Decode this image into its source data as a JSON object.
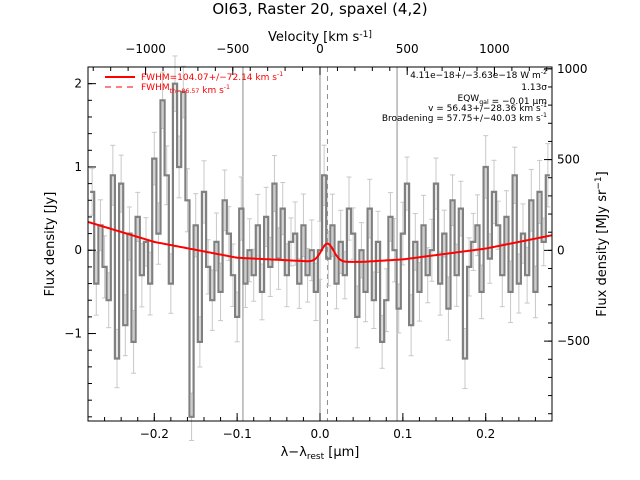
{
  "chart_data": {
    "type": "line",
    "title": "OI63, Raster 20, spaxel (4,2)",
    "xlabel": "λ−λ_rest [μm]",
    "ylabel_left": "Flux density [Jy]",
    "ylabel_right": "Flux density [MJy sr^-1]",
    "top_axis_label": "Velocity [km s^-1]",
    "xlim": [
      -0.28,
      0.28
    ],
    "ylim": [
      -2.05,
      2.2
    ],
    "right_ylim": [
      -940,
      1010
    ],
    "top_xlim": [
      -1330,
      1330
    ],
    "x_ticks": [
      -0.2,
      -0.1,
      0.0,
      0.1,
      0.2
    ],
    "x_tick_labels": [
      "−0.2",
      "−0.1",
      "0.0",
      "0.1",
      "0.2"
    ],
    "y_ticks": [
      -1,
      0,
      1,
      2
    ],
    "y_tick_labels": [
      "−1",
      "0",
      "1",
      "2"
    ],
    "right_ticks": [
      -500,
      0,
      500,
      1000
    ],
    "right_tick_labels": [
      "−500",
      "0",
      "500",
      "1000"
    ],
    "top_ticks": [
      -1000,
      -500,
      0,
      500,
      1000
    ],
    "top_tick_labels": [
      "−1000",
      "−500",
      "0",
      "500",
      "1000"
    ],
    "vertical_lines": [
      -0.093,
      0.0,
      0.093
    ],
    "dashed_line": 0.009,
    "legend": {
      "position": "top-left",
      "entries": [
        {
          "label": "FWHM=104.07+/−72.14 km s^-1",
          "style": "solid"
        },
        {
          "label": "FWHM_th=86.57 km s^-1",
          "style": "dashed"
        }
      ]
    },
    "annotations": [
      "4.11e−18+/−3.63e−18 W m^-2",
      "1.13σ",
      "EQW_gal = −0.01 μm",
      "v = 56.43+/−28.36 km s^-1",
      "Broadening = 57.75+/−40.03 km s^-1"
    ],
    "line_center": 0.009,
    "line_sigma": 0.0075,
    "line_peak": 0.22,
    "series": [
      {
        "name": "spectrum",
        "color": "#808080",
        "x": [
          -0.275,
          -0.27,
          -0.265,
          -0.26,
          -0.255,
          -0.25,
          -0.245,
          -0.24,
          -0.235,
          -0.23,
          -0.225,
          -0.22,
          -0.215,
          -0.21,
          -0.205,
          -0.2,
          -0.195,
          -0.19,
          -0.185,
          -0.18,
          -0.175,
          -0.17,
          -0.165,
          -0.16,
          -0.155,
          -0.15,
          -0.145,
          -0.14,
          -0.135,
          -0.13,
          -0.125,
          -0.12,
          -0.115,
          -0.11,
          -0.105,
          -0.1,
          -0.095,
          -0.09,
          -0.085,
          -0.08,
          -0.075,
          -0.07,
          -0.065,
          -0.06,
          -0.055,
          -0.05,
          -0.045,
          -0.04,
          -0.035,
          -0.03,
          -0.025,
          -0.02,
          -0.015,
          -0.01,
          -0.005,
          0.0,
          0.005,
          0.01,
          0.015,
          0.02,
          0.025,
          0.03,
          0.035,
          0.04,
          0.045,
          0.05,
          0.055,
          0.06,
          0.065,
          0.07,
          0.075,
          0.08,
          0.085,
          0.09,
          0.095,
          0.1,
          0.105,
          0.11,
          0.115,
          0.12,
          0.125,
          0.13,
          0.135,
          0.14,
          0.145,
          0.15,
          0.155,
          0.16,
          0.165,
          0.17,
          0.175,
          0.18,
          0.185,
          0.19,
          0.195,
          0.2,
          0.205,
          0.21,
          0.215,
          0.22,
          0.225,
          0.23,
          0.235,
          0.24,
          0.245,
          0.25,
          0.255,
          0.26,
          0.265,
          0.27,
          0.275
        ],
        "y": [
          0.7,
          -0.4,
          0.3,
          -0.2,
          -0.6,
          0.9,
          -1.3,
          0.8,
          -0.9,
          0.2,
          -1.1,
          0.4,
          -0.3,
          0.1,
          -0.4,
          1.1,
          0.2,
          1.8,
          0.9,
          -0.4,
          2.0,
          1.0,
          1.9,
          0.6,
          -2.0,
          0.3,
          -1.1,
          0.7,
          -0.2,
          -0.6,
          0.1,
          -0.5,
          0.6,
          0.2,
          -0.3,
          -0.8,
          0.5,
          -0.4,
          0.0,
          -0.3,
          0.3,
          -0.5,
          0.4,
          -0.2,
          0.8,
          -0.1,
          0.5,
          -0.3,
          0.1,
          0.2,
          -0.4,
          0.3,
          -0.3,
          0.0,
          -0.5,
          0.0,
          0.9,
          -0.1,
          0.3,
          -0.4,
          0.1,
          -0.3,
          0.5,
          0.2,
          -0.8,
          0.0,
          -0.5,
          0.5,
          -0.6,
          0.1,
          -1.1,
          -0.6,
          0.4,
          0.0,
          -0.7,
          0.2,
          0.8,
          -0.9,
          0.1,
          -0.5,
          0.3,
          -0.3,
          0.0,
          0.8,
          -0.4,
          0.2,
          -0.7,
          0.6,
          -0.3,
          0.5,
          -1.3,
          -0.2,
          0.1,
          0.3,
          -0.5,
          1.0,
          -0.1,
          0.7,
          0.3,
          -0.3,
          0.4,
          -0.5,
          0.9,
          -0.4,
          0.2,
          -0.3,
          0.6,
          -0.5,
          0.7,
          0.1,
          0.9
        ]
      },
      {
        "name": "fit",
        "color": "#ff0000",
        "baseline_x": [
          -0.28,
          -0.2,
          -0.1,
          0.0,
          0.05,
          0.1,
          0.2,
          0.28
        ],
        "baseline_y": [
          0.34,
          0.1,
          -0.09,
          -0.14,
          -0.14,
          -0.11,
          0.02,
          0.18
        ]
      }
    ]
  }
}
